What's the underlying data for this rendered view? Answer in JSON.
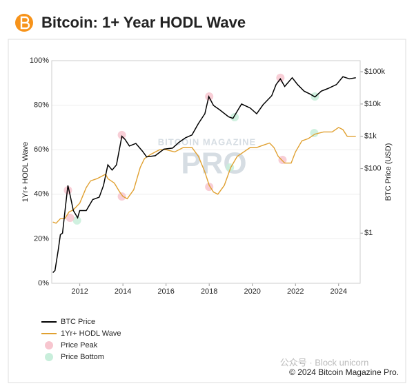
{
  "chart_data": {
    "type": "line",
    "title": "Bitcoin: 1+ Year HODL Wave",
    "ylabel": "1Yr+ HODL Wave",
    "y2label": "BTC Price (USD)",
    "watermark": [
      "BITCOIN MAGAZINE",
      "PRO"
    ],
    "credit": "© 2024 Bitcoin Magazine Pro.",
    "overlay": "公众号 · Block unicorn",
    "xlim": [
      2010.7,
      2025
    ],
    "xticks": [
      2012,
      2014,
      2016,
      2018,
      2020,
      2022,
      2024
    ],
    "ylim": [
      0,
      100
    ],
    "yticks": [
      {
        "value": 0,
        "label": "0%"
      },
      {
        "value": 20,
        "label": "20%"
      },
      {
        "value": 40,
        "label": "40%"
      },
      {
        "value": 60,
        "label": "60%"
      },
      {
        "value": 80,
        "label": "80%"
      },
      {
        "value": 100,
        "label": "100%"
      }
    ],
    "y2lim": [
      0.028,
      220000
    ],
    "y2scale": "log",
    "y2ticks": [
      {
        "value": 1,
        "label": "$1"
      },
      {
        "value": 100,
        "label": "$100"
      },
      {
        "value": 1000,
        "label": "$1k"
      },
      {
        "value": 10000,
        "label": "$10k"
      },
      {
        "value": 100000,
        "label": "$100k"
      }
    ],
    "grid": true,
    "legend": "bottom-left",
    "series": [
      {
        "name": "BTC Price",
        "color": "#000000",
        "axis": "y2",
        "kind": "line",
        "x": [
          2010.75,
          2010.85,
          2011.0,
          2011.1,
          2011.2,
          2011.35,
          2011.45,
          2011.55,
          2011.7,
          2011.9,
          2012.0,
          2012.3,
          2012.6,
          2012.9,
          2013.1,
          2013.3,
          2013.5,
          2013.7,
          2013.95,
          2014.1,
          2014.3,
          2014.6,
          2014.9,
          2015.1,
          2015.5,
          2015.9,
          2016.3,
          2016.6,
          2016.9,
          2017.2,
          2017.5,
          2017.8,
          2017.98,
          2018.2,
          2018.5,
          2018.9,
          2019.1,
          2019.5,
          2019.9,
          2020.2,
          2020.5,
          2020.9,
          2021.1,
          2021.3,
          2021.5,
          2021.85,
          2022.1,
          2022.4,
          2022.7,
          2022.9,
          2023.2,
          2023.5,
          2023.9,
          2024.2,
          2024.5,
          2024.8
        ],
        "values": [
          0.06,
          0.07,
          0.3,
          0.9,
          1.0,
          8,
          30,
          15,
          5,
          3,
          5,
          5,
          11,
          13,
          30,
          130,
          90,
          130,
          1000,
          800,
          500,
          600,
          350,
          230,
          250,
          400,
          430,
          650,
          900,
          1100,
          2500,
          5000,
          17000,
          9000,
          6500,
          4000,
          3600,
          10000,
          7500,
          5000,
          9500,
          18000,
          40000,
          60000,
          35000,
          65000,
          40000,
          25000,
          20000,
          16500,
          25000,
          30000,
          40000,
          70000,
          60000,
          65000
        ]
      },
      {
        "name": "1Yr+ HODL Wave",
        "color": "#e0a030",
        "kind": "line",
        "x": [
          2010.75,
          2010.9,
          2011.1,
          2011.3,
          2011.5,
          2011.7,
          2012.0,
          2012.3,
          2012.5,
          2012.8,
          2013.0,
          2013.2,
          2013.3,
          2013.6,
          2013.85,
          2014.0,
          2014.2,
          2014.5,
          2014.8,
          2015.0,
          2015.3,
          2015.7,
          2016.0,
          2016.4,
          2016.8,
          2017.2,
          2017.5,
          2017.8,
          2018.0,
          2018.2,
          2018.4,
          2018.7,
          2019.0,
          2019.3,
          2019.6,
          2019.9,
          2020.2,
          2020.5,
          2020.8,
          2021.0,
          2021.2,
          2021.5,
          2021.8,
          2022.0,
          2022.3,
          2022.6,
          2022.9,
          2023.3,
          2023.7,
          2024.0,
          2024.2,
          2024.4,
          2024.8
        ],
        "values": [
          27.5,
          27,
          29,
          29,
          32,
          33,
          36,
          43,
          46,
          47,
          48,
          49,
          47,
          45,
          41,
          39,
          38,
          42,
          52,
          56,
          58,
          60,
          60,
          59,
          61,
          61,
          57,
          50,
          44,
          41,
          40,
          44,
          52,
          57,
          59,
          61,
          61,
          62,
          63,
          61,
          57,
          54,
          54,
          59,
          64,
          65,
          67,
          68,
          68,
          70,
          69,
          66,
          66
        ]
      },
      {
        "name": "Price Peak",
        "color": "#f7c6cf",
        "kind": "scatter",
        "x": [
          2011.45,
          2011.55,
          2013.95,
          2013.95,
          2018.0,
          2018.0,
          2021.3,
          2021.4
        ],
        "values": [
          41.8,
          29.4,
          66.6,
          39.0,
          83.9,
          43.3,
          92.3,
          55.4
        ]
      },
      {
        "name": "Price Bottom",
        "color": "#c8eedb",
        "kind": "scatter",
        "x": [
          2011.87,
          2019.18,
          2018.96,
          2022.9,
          2022.87
        ],
        "values": [
          28.2,
          74.6,
          52.0,
          83.9,
          67.5
        ]
      }
    ]
  }
}
